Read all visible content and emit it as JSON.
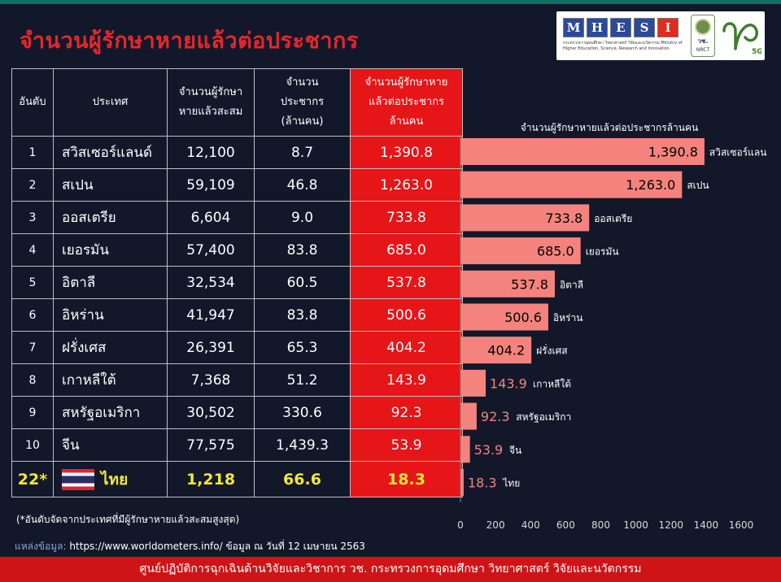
{
  "title": "จำนวนผู้รักษาหายแล้วต่อประชากร",
  "logos": {
    "mhesi_letters": [
      "M",
      "H",
      "E",
      "S",
      "I"
    ],
    "mhesi_colors": [
      "#2a4a9a",
      "#2a4a9a",
      "#2a4a9a",
      "#2a4a9a",
      "#e02b20"
    ],
    "mhesi_sub": "กระทรวงการอุดมศึกษา วิทยาศาสตร์ วิจัยและนวัตกรรม Ministry of Higher Education, Science, Research and Innovation",
    "nrct_label": "วช.",
    "nrct_sub": "NRCT",
    "logo5g_text": "วช",
    "logo5g_badge": "5G"
  },
  "table": {
    "headers": {
      "rank": "อันดับ",
      "country": "ประเทศ",
      "recovered_l1": "จำนวนผู้รักษา",
      "recovered_l2": "หายแล้วสะสม",
      "population_l1": "จำนวน",
      "population_l2": "ประชากร",
      "population_l3": "(ล้านคน)",
      "per_million_l1": "จำนวนผู้รักษาหาย",
      "per_million_l2": "แล้วต่อประชากร",
      "per_million_l3": "ล้านคน"
    },
    "rows": [
      {
        "rank": "1",
        "country": "สวิสเซอร์แลนด์",
        "recovered": "12,100",
        "population": "8.7",
        "per_million": "1,390.8"
      },
      {
        "rank": "2",
        "country": "สเปน",
        "recovered": "59,109",
        "population": "46.8",
        "per_million": "1,263.0"
      },
      {
        "rank": "3",
        "country": "ออสเตรีย",
        "recovered": "6,604",
        "population": "9.0",
        "per_million": "733.8"
      },
      {
        "rank": "4",
        "country": "เยอรมัน",
        "recovered": "57,400",
        "population": "83.8",
        "per_million": "685.0"
      },
      {
        "rank": "5",
        "country": "อิตาลี",
        "recovered": "32,534",
        "population": "60.5",
        "per_million": "537.8"
      },
      {
        "rank": "6",
        "country": "อิหร่าน",
        "recovered": "41,947",
        "population": "83.8",
        "per_million": "500.6"
      },
      {
        "rank": "7",
        "country": "ฝรั่งเศส",
        "recovered": "26,391",
        "population": "65.3",
        "per_million": "404.2"
      },
      {
        "rank": "8",
        "country": "เกาหลีใต้",
        "recovered": "7,368",
        "population": "51.2",
        "per_million": "143.9"
      },
      {
        "rank": "9",
        "country": "สหรัฐอเมริกา",
        "recovered": "30,502",
        "population": "330.6",
        "per_million": "92.3"
      },
      {
        "rank": "10",
        "country": "จีน",
        "recovered": "77,575",
        "population": "1,439.3",
        "per_million": "53.9"
      }
    ],
    "thailand": {
      "rank": "22*",
      "country": "ไทย",
      "recovered": "1,218",
      "population": "66.6",
      "per_million": "18.3"
    }
  },
  "footnote": "(*อันดับจัดจากประเทศที่มีผู้รักษาหายแล้วสะสมสูงสุด)",
  "source": {
    "label": "แหล่งข้อมูล:",
    "text": "https://www.worldometers.info/ ข้อมูล ณ วันที่ 12 เมษายน 2563"
  },
  "bottom_bar": "ศูนย์ปฏิบัติการฉุกเฉินด้านวิจัยและวิชาการ   วช.   กระทรวงการอุดมศึกษา วิทยาศาสตร์ วิจัยและนวัตกรรม",
  "colors": {
    "bar": "#f4837d",
    "table_highlight": "#e61518",
    "thai_text": "#f3e63a",
    "title": "#e8262a"
  },
  "chart_data": {
    "type": "bar",
    "orientation": "horizontal",
    "title": "จำนวนผู้รักษาหายแล้วต่อประชากรล้านคน",
    "xlabel": "",
    "ylabel": "",
    "xlim": [
      0,
      1600
    ],
    "xticks": [
      "0",
      "200",
      "400",
      "600",
      "800",
      "1000",
      "1200",
      "1400",
      "1600"
    ],
    "grid": false,
    "categories": [
      "สวิสเซอร์แลนด์",
      "สเปน",
      "ออสเตรีย",
      "เยอรมัน",
      "อิตาลี",
      "อิหร่าน",
      "ฝรั่งเศส",
      "เกาหลีใต้",
      "สหรัฐอเมริกา",
      "จีน",
      "ไทย"
    ],
    "values": [
      1390.8,
      1263.0,
      733.8,
      685.0,
      537.8,
      500.6,
      404.2,
      143.9,
      92.3,
      53.9,
      18.3
    ],
    "value_labels": [
      "1,390.8",
      "1,263.0",
      "733.8",
      "685.0",
      "537.8",
      "500.6",
      "404.2",
      "143.9",
      "92.3",
      "53.9",
      "18.3"
    ]
  }
}
